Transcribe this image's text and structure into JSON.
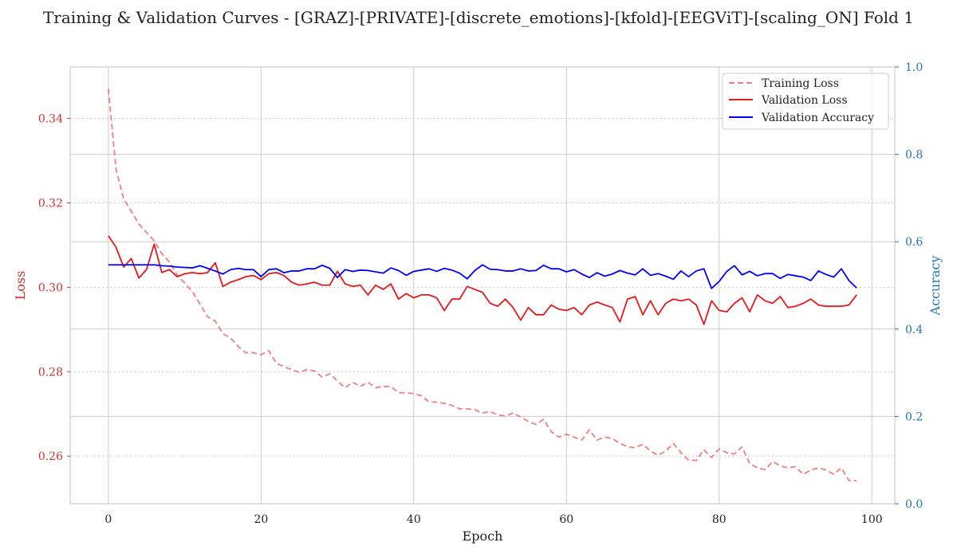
{
  "chart_data": {
    "type": "line",
    "title": "Training & Validation Curves - [GRAZ]-[PRIVATE]-[discrete_emotions]-[kfold]-[EEGViT]-[scaling_ON] Fold 1",
    "xlabel": "Epoch",
    "ylabel_left": "Loss",
    "ylabel_right": "Accuracy",
    "xlim": [
      -5,
      103
    ],
    "ylim_left": [
      0.2487,
      0.3522
    ],
    "ylim_right": [
      0,
      1.0
    ],
    "x_ticks": [
      0,
      20,
      40,
      60,
      80,
      100
    ],
    "y_left_ticks": [
      0.26,
      0.28,
      0.3,
      0.32,
      0.34
    ],
    "y_left_tick_labels": [
      "0.26",
      "0.28",
      "0.30",
      "0.32",
      "0.34"
    ],
    "y_right_ticks": [
      0.0,
      0.2,
      0.4,
      0.6,
      0.8,
      1.0
    ],
    "y_right_tick_labels": [
      "0.0",
      "0.2",
      "0.4",
      "0.6",
      "0.8",
      "1.0"
    ],
    "grid": true,
    "legend_position": "top-right",
    "colors": {
      "training_loss": "#f08080",
      "validation_loss": "#e31a1c",
      "validation_accuracy": "#0000ff",
      "left_axis": "#cc3333",
      "right_axis": "#1f77b4"
    },
    "series": [
      {
        "name": "Training Loss",
        "axis": "left",
        "style": "dashed",
        "x": [
          0,
          1,
          2,
          3,
          4,
          5,
          6,
          7,
          8,
          9,
          10,
          11,
          12,
          13,
          14,
          15,
          16,
          17,
          18,
          19,
          20,
          21,
          22,
          23,
          24,
          25,
          26,
          27,
          28,
          29,
          30,
          31,
          32,
          33,
          34,
          35,
          36,
          37,
          38,
          39,
          40,
          41,
          42,
          43,
          44,
          45,
          46,
          47,
          48,
          49,
          50,
          51,
          52,
          53,
          54,
          55,
          56,
          57,
          58,
          59,
          60,
          61,
          62,
          63,
          64,
          65,
          66,
          67,
          68,
          69,
          70,
          71,
          72,
          73,
          74,
          75,
          76,
          77,
          78,
          79,
          80,
          81,
          82,
          83,
          84,
          85,
          86,
          87,
          88,
          89,
          90,
          91,
          92,
          93,
          94,
          95,
          96,
          97,
          98
        ],
        "values": [
          0.347,
          0.328,
          0.321,
          0.318,
          0.315,
          0.313,
          0.311,
          0.308,
          0.306,
          0.303,
          0.301,
          0.299,
          0.296,
          0.293,
          0.292,
          0.289,
          0.288,
          0.286,
          0.2845,
          0.2845,
          0.284,
          0.285,
          0.282,
          0.2812,
          0.2805,
          0.2798,
          0.2805,
          0.2802,
          0.2787,
          0.2795,
          0.2778,
          0.2762,
          0.2775,
          0.2765,
          0.2775,
          0.2762,
          0.2765,
          0.2765,
          0.275,
          0.275,
          0.2748,
          0.2743,
          0.2728,
          0.2728,
          0.2725,
          0.272,
          0.2712,
          0.2712,
          0.271,
          0.2702,
          0.2705,
          0.2698,
          0.2695,
          0.2702,
          0.2693,
          0.2682,
          0.2675,
          0.2687,
          0.2658,
          0.2645,
          0.2652,
          0.2645,
          0.2638,
          0.2662,
          0.2638,
          0.2645,
          0.2642,
          0.263,
          0.2622,
          0.262,
          0.2628,
          0.2612,
          0.2602,
          0.2612,
          0.263,
          0.2608,
          0.259,
          0.259,
          0.2615,
          0.2597,
          0.2617,
          0.2608,
          0.2605,
          0.2622,
          0.2582,
          0.2572,
          0.2568,
          0.2587,
          0.2577,
          0.2572,
          0.2575,
          0.2557,
          0.2567,
          0.2572,
          0.2567,
          0.2557,
          0.2572,
          0.2542,
          0.2542
        ]
      },
      {
        "name": "Validation Loss",
        "axis": "left",
        "style": "solid",
        "x": [
          0,
          1,
          2,
          3,
          4,
          5,
          6,
          7,
          8,
          9,
          10,
          11,
          12,
          13,
          14,
          15,
          16,
          17,
          18,
          19,
          20,
          21,
          22,
          23,
          24,
          25,
          26,
          27,
          28,
          29,
          30,
          31,
          32,
          33,
          34,
          35,
          36,
          37,
          38,
          39,
          40,
          41,
          42,
          43,
          44,
          45,
          46,
          47,
          48,
          49,
          50,
          51,
          52,
          53,
          54,
          55,
          56,
          57,
          58,
          59,
          60,
          61,
          62,
          63,
          64,
          65,
          66,
          67,
          68,
          69,
          70,
          71,
          72,
          73,
          74,
          75,
          76,
          77,
          78,
          79,
          80,
          81,
          82,
          83,
          84,
          85,
          86,
          87,
          88,
          89,
          90,
          91,
          92,
          93,
          94,
          95,
          96,
          97,
          98
        ],
        "values": [
          0.3122,
          0.3095,
          0.3048,
          0.3068,
          0.3022,
          0.3042,
          0.3102,
          0.3035,
          0.3042,
          0.3025,
          0.3032,
          0.3035,
          0.3032,
          0.3035,
          0.3058,
          0.3002,
          0.3012,
          0.3018,
          0.3025,
          0.3028,
          0.3018,
          0.3032,
          0.3035,
          0.3028,
          0.3012,
          0.3005,
          0.3008,
          0.3012,
          0.3005,
          0.3005,
          0.3038,
          0.3008,
          0.3002,
          0.3005,
          0.2982,
          0.3005,
          0.2995,
          0.3008,
          0.2972,
          0.2985,
          0.2975,
          0.2982,
          0.2982,
          0.2975,
          0.2945,
          0.2972,
          0.2972,
          0.3002,
          0.2995,
          0.2988,
          0.2962,
          0.2955,
          0.2972,
          0.2952,
          0.2922,
          0.2952,
          0.2935,
          0.2935,
          0.2958,
          0.2948,
          0.2945,
          0.2952,
          0.2935,
          0.2958,
          0.2965,
          0.2958,
          0.2952,
          0.2918,
          0.2972,
          0.2978,
          0.2935,
          0.2968,
          0.2935,
          0.2962,
          0.2972,
          0.2968,
          0.2972,
          0.2958,
          0.2912,
          0.2968,
          0.2945,
          0.2942,
          0.2962,
          0.2975,
          0.2942,
          0.2982,
          0.2968,
          0.2962,
          0.2978,
          0.2952,
          0.2955,
          0.2962,
          0.2972,
          0.2958,
          0.2955,
          0.2955,
          0.2955,
          0.2958,
          0.2982
        ]
      },
      {
        "name": "Validation Accuracy",
        "axis": "right",
        "style": "solid",
        "x": [
          0,
          1,
          2,
          3,
          4,
          5,
          6,
          7,
          8,
          9,
          10,
          11,
          12,
          13,
          14,
          15,
          16,
          17,
          18,
          19,
          20,
          21,
          22,
          23,
          24,
          25,
          26,
          27,
          28,
          29,
          30,
          31,
          32,
          33,
          34,
          35,
          36,
          37,
          38,
          39,
          40,
          41,
          42,
          43,
          44,
          45,
          46,
          47,
          48,
          49,
          50,
          51,
          52,
          53,
          54,
          55,
          56,
          57,
          58,
          59,
          60,
          61,
          62,
          63,
          64,
          65,
          66,
          67,
          68,
          69,
          70,
          71,
          72,
          73,
          74,
          75,
          76,
          77,
          78,
          79,
          80,
          81,
          82,
          83,
          84,
          85,
          86,
          87,
          88,
          89,
          90,
          91,
          92,
          93,
          94,
          95,
          96,
          97,
          98
        ],
        "values": [
          0.547,
          0.547,
          0.547,
          0.547,
          0.547,
          0.547,
          0.547,
          0.545,
          0.544,
          0.542,
          0.541,
          0.54,
          0.545,
          0.539,
          0.533,
          0.526,
          0.536,
          0.539,
          0.536,
          0.536,
          0.52,
          0.536,
          0.538,
          0.529,
          0.533,
          0.533,
          0.538,
          0.538,
          0.546,
          0.539,
          0.518,
          0.536,
          0.532,
          0.535,
          0.534,
          0.531,
          0.528,
          0.54,
          0.534,
          0.523,
          0.532,
          0.535,
          0.538,
          0.532,
          0.539,
          0.535,
          0.528,
          0.515,
          0.534,
          0.547,
          0.537,
          0.536,
          0.533,
          0.533,
          0.538,
          0.533,
          0.534,
          0.546,
          0.538,
          0.538,
          0.531,
          0.536,
          0.526,
          0.518,
          0.529,
          0.521,
          0.526,
          0.534,
          0.528,
          0.524,
          0.538,
          0.523,
          0.527,
          0.521,
          0.514,
          0.533,
          0.52,
          0.533,
          0.538,
          0.493,
          0.509,
          0.532,
          0.545,
          0.524,
          0.532,
          0.522,
          0.527,
          0.527,
          0.516,
          0.525,
          0.522,
          0.519,
          0.511,
          0.533,
          0.525,
          0.519,
          0.538,
          0.511,
          0.494
        ]
      }
    ]
  }
}
